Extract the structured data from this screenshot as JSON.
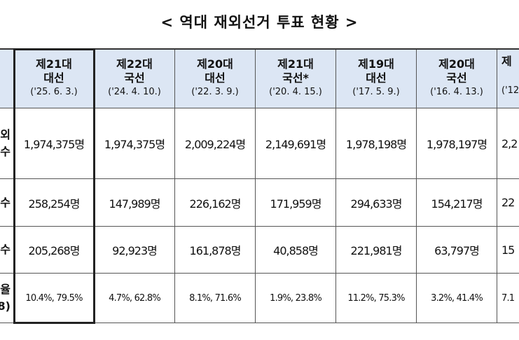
{
  "header": {
    "title": "< 역대 재외선거 투표 현황 >"
  },
  "table": {
    "columns": [
      {
        "lines": [
          "제21대",
          "대선",
          "('25. 6. 3.)"
        ]
      },
      {
        "lines": [
          "제22대",
          "국선",
          "('24. 4. 10.)"
        ]
      },
      {
        "lines": [
          "제20대",
          "대선",
          "('22. 3. 9.)"
        ]
      },
      {
        "lines": [
          "제21대",
          "국선*",
          "('20. 4. 15.)"
        ]
      },
      {
        "lines": [
          "제19대",
          "대선",
          "('17. 5. 9.)"
        ]
      },
      {
        "lines": [
          "제20대",
          "국선",
          "('16. 4. 13.)"
        ]
      },
      {
        "lines": [
          "제",
          "('12"
        ]
      }
    ],
    "row_labels": [
      [
        "외",
        "수"
      ],
      [
        "수"
      ],
      [
        "수"
      ],
      [
        "율",
        "8)"
      ]
    ],
    "rows": [
      [
        "1,974,375명",
        "1,974,375명",
        "2,009,224명",
        "2,149,691명",
        "1,978,198명",
        "1,978,197명",
        "2,2"
      ],
      [
        "258,254명",
        "147,989명",
        "226,162명",
        "171,959명",
        "294,633명",
        "154,217명",
        "22"
      ],
      [
        "205,268명",
        "92,923명",
        "161,878명",
        "40,858명",
        "221,981명",
        "63,797명",
        "15"
      ],
      [
        "10.4%, 79.5%",
        "4.7%, 62.8%",
        "8.1%, 71.6%",
        "1.9%, 23.8%",
        "11.2%, 75.3%",
        "3.2%, 41.4%",
        "7.1"
      ]
    ]
  }
}
